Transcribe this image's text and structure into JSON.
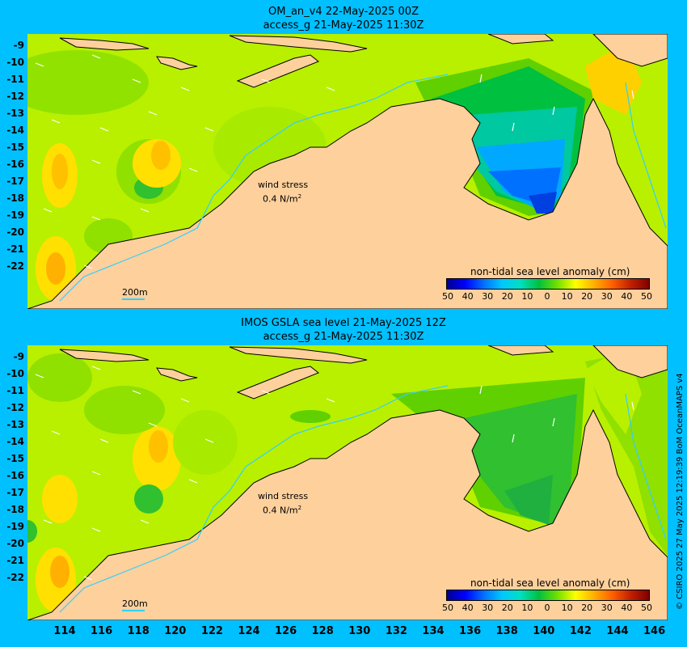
{
  "panels": [
    {
      "title_line1": "OM_an_v4  22-May-2025 00Z",
      "title_line2": "access_g 21-May-2025 11:30Z",
      "wind_label": "wind stress",
      "wind_value": "0.4 N/m",
      "wind_unit_sup": "2",
      "colorbar_title": "non-tidal sea level anomaly (cm)",
      "isobath_label": "200m"
    },
    {
      "title_line1": "IMOS GSLA sea level  21-May-2025 12Z",
      "title_line2": "access_g 21-May-2025 11:30Z",
      "wind_label": "wind stress",
      "wind_value": "0.4 N/m",
      "wind_unit_sup": "2",
      "colorbar_title": "non-tidal sea level anomaly (cm)",
      "isobath_label": "200m"
    }
  ],
  "lat_ticks": [
    "-9",
    "-10",
    "-11",
    "-12",
    "-13",
    "-14",
    "-15",
    "-16",
    "-17",
    "-18",
    "-19",
    "-20",
    "-21",
    "-22"
  ],
  "lon_ticks": [
    "114",
    "116",
    "118",
    "120",
    "122",
    "124",
    "126",
    "128",
    "130",
    "132",
    "134",
    "136",
    "138",
    "140",
    "142",
    "144",
    "146"
  ],
  "colorbar": {
    "labels": [
      "50",
      "40",
      "30",
      "20",
      "10",
      "0",
      "10",
      "20",
      "30",
      "40",
      "50"
    ],
    "colors": [
      "#000090",
      "#0000ff",
      "#0070ff",
      "#00c8ff",
      "#00e0c0",
      "#00c040",
      "#70e000",
      "#ffff00",
      "#ffb000",
      "#ff6000",
      "#c02000",
      "#800000"
    ]
  },
  "map_colors": {
    "land": "#fdd09c",
    "sea_base": "#b8f000",
    "isobath": "#30d0ff"
  },
  "credit": "© CSIRO 2025   27 May 2025 12:19:39 BoM OceanMAPS v4"
}
